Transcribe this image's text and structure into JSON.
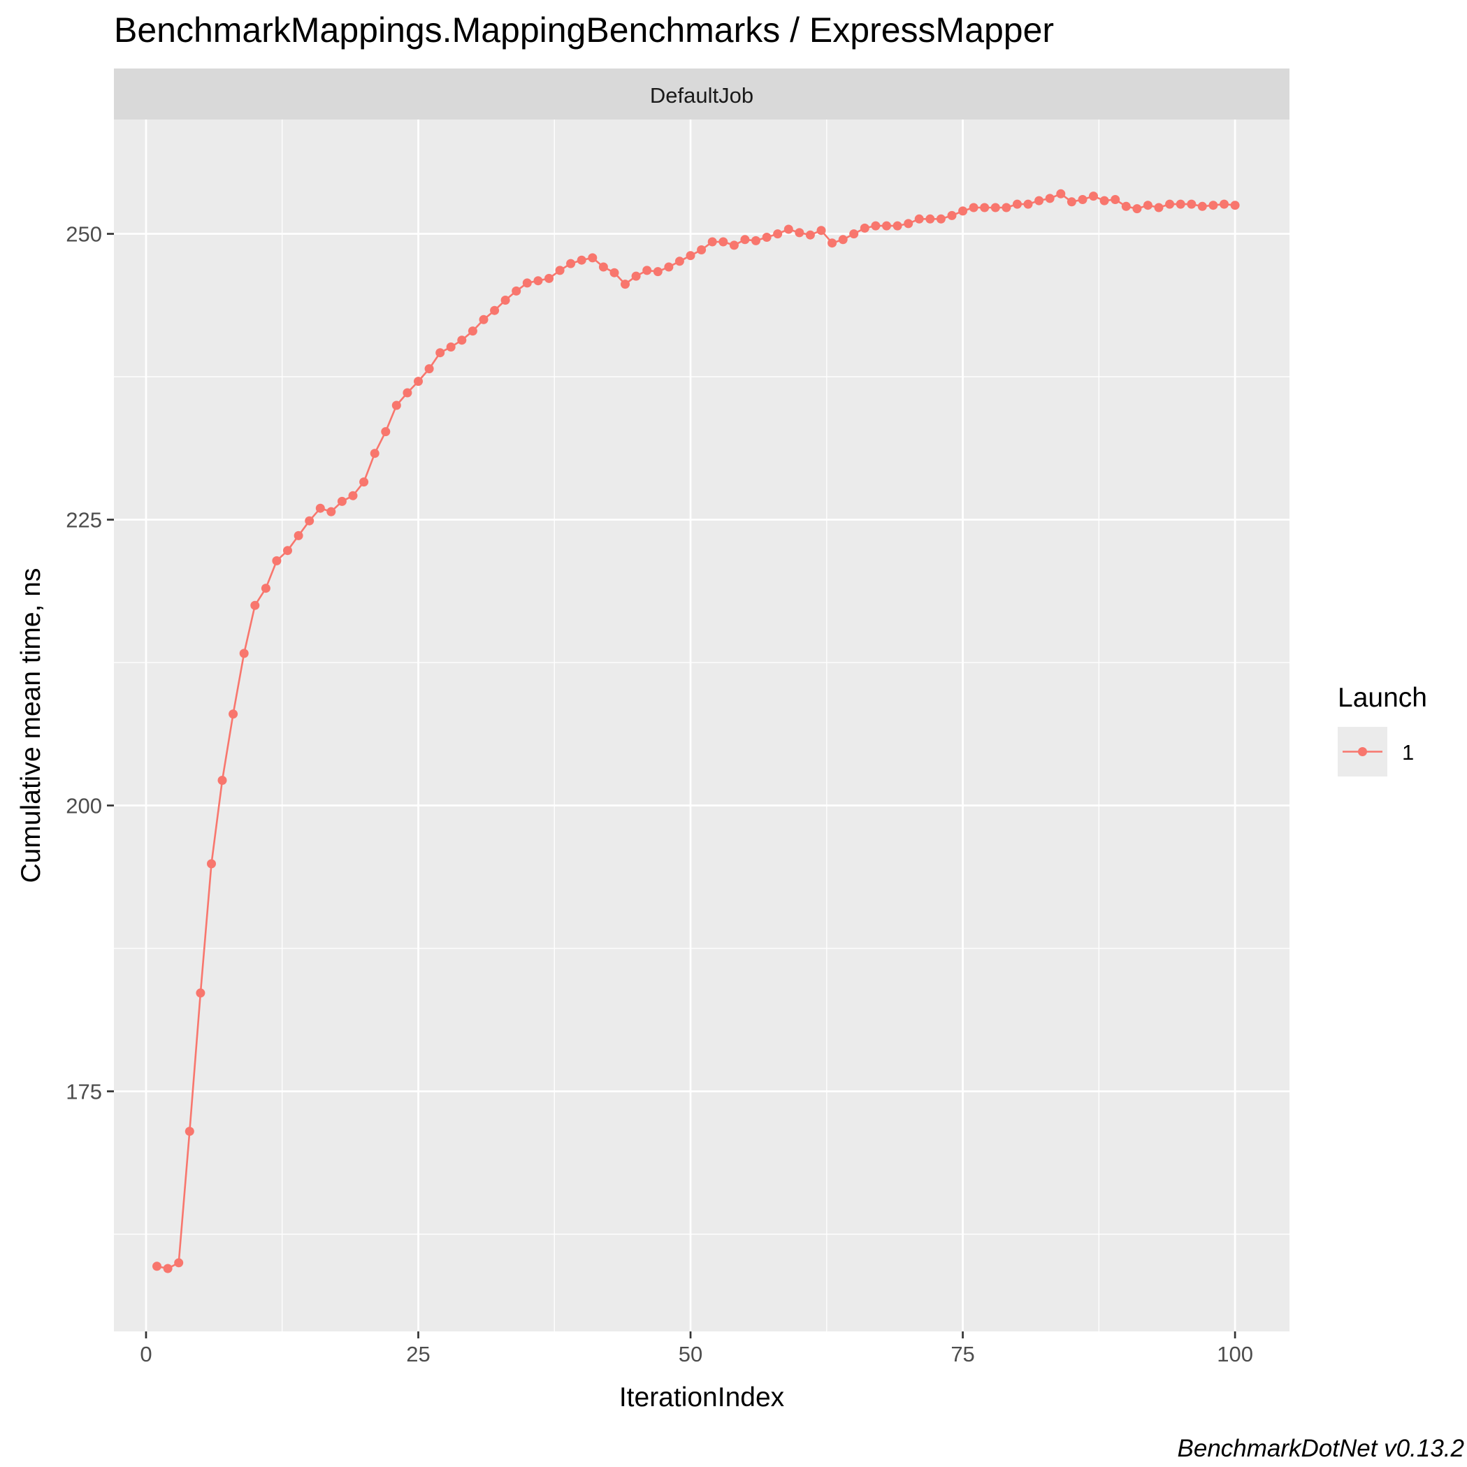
{
  "title": "BenchmarkMappings.MappingBenchmarks / ExpressMapper",
  "caption": "BenchmarkDotNet v0.13.2",
  "colors": {
    "series": "#F8766D",
    "panel_bg": "#EBEBEB",
    "strip_bg": "#D9D9D9",
    "grid": "#FFFFFF"
  },
  "chart_data": {
    "type": "line",
    "facet": "DefaultJob",
    "xlabel": "IterationIndex",
    "ylabel": "Cumulative mean time, ns",
    "xlim": [
      -2.95,
      105.0
    ],
    "ylim": [
      154.0,
      260.0
    ],
    "x_ticks": [
      0,
      25,
      50,
      75,
      100
    ],
    "x_tick_labels": [
      "0",
      "25",
      "50",
      "75",
      "100"
    ],
    "y_ticks": [
      175,
      200,
      225,
      250
    ],
    "y_tick_labels": [
      "175",
      "200",
      "225",
      "250"
    ],
    "grid": true,
    "legend": {
      "title": "Launch",
      "position": "right",
      "entries": [
        "1"
      ]
    },
    "series": [
      {
        "name": "1",
        "x": [
          1,
          2,
          3,
          4,
          5,
          6,
          7,
          8,
          9,
          10,
          11,
          12,
          13,
          14,
          15,
          16,
          17,
          18,
          19,
          20,
          21,
          22,
          23,
          24,
          25,
          26,
          27,
          28,
          29,
          30,
          31,
          32,
          33,
          34,
          35,
          36,
          37,
          38,
          39,
          40,
          41,
          42,
          43,
          44,
          45,
          46,
          47,
          48,
          49,
          50,
          51,
          52,
          53,
          54,
          55,
          56,
          57,
          58,
          59,
          60,
          61,
          62,
          63,
          64,
          65,
          66,
          67,
          68,
          69,
          70,
          71,
          72,
          73,
          74,
          75,
          76,
          77,
          78,
          79,
          80,
          81,
          82,
          83,
          84,
          85,
          86,
          87,
          88,
          89,
          90,
          91,
          92,
          93,
          94,
          95,
          96,
          97,
          98,
          99,
          100
        ],
        "y": [
          159.7,
          159.5,
          160.0,
          171.5,
          183.6,
          194.9,
          202.2,
          208.0,
          213.3,
          217.5,
          219.0,
          221.4,
          222.3,
          223.6,
          224.9,
          226.0,
          225.7,
          226.6,
          227.1,
          228.3,
          230.8,
          232.7,
          235.0,
          236.1,
          237.1,
          238.2,
          239.6,
          240.1,
          240.7,
          241.5,
          242.5,
          243.3,
          244.2,
          245.0,
          245.7,
          245.9,
          246.1,
          246.8,
          247.4,
          247.7,
          247.9,
          247.1,
          246.6,
          245.6,
          246.3,
          246.8,
          246.7,
          247.1,
          247.6,
          248.1,
          248.6,
          249.3,
          249.3,
          249.0,
          249.5,
          249.4,
          249.7,
          250.0,
          250.4,
          250.1,
          249.9,
          250.3,
          249.2,
          249.5,
          250.0,
          250.5,
          250.7,
          250.7,
          250.7,
          250.9,
          251.3,
          251.3,
          251.3,
          251.6,
          252.0,
          252.3,
          252.3,
          252.3,
          252.3,
          252.6,
          252.6,
          252.9,
          253.1,
          253.5,
          252.8,
          253.0,
          253.3,
          252.9,
          253.0,
          252.4,
          252.2,
          252.5,
          252.3,
          252.6,
          252.6,
          252.6,
          252.4,
          252.5,
          252.6,
          252.5
        ]
      }
    ]
  }
}
